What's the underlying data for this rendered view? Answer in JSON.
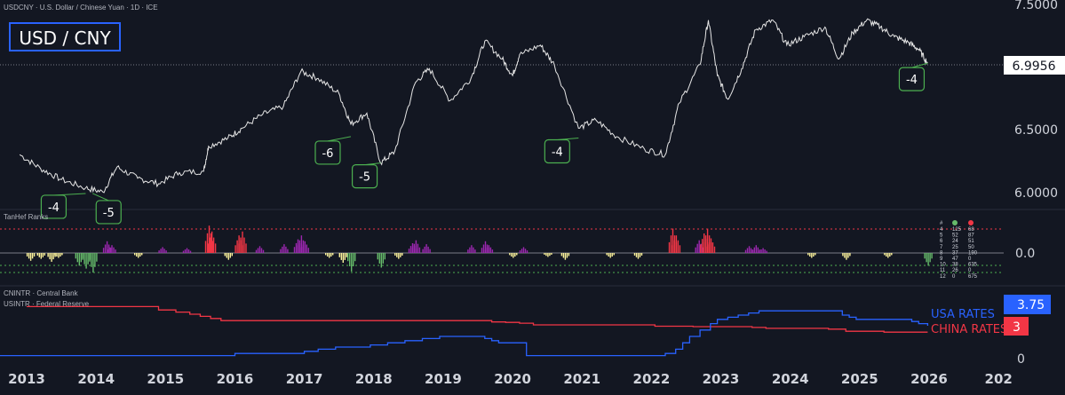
{
  "header": {
    "symbol_line": "USDCNY · U.S. Dollar / Chinese Yuan · 1D · ICE",
    "badge": "USD / CNY"
  },
  "price_pane": {
    "last_price": "6.9956",
    "y_ticks": [
      "7.5000",
      "6.5000",
      "6.0000"
    ],
    "ylim": [
      5.96,
      7.42
    ],
    "callouts": [
      {
        "label": "-4",
        "year": 2013.85,
        "price": 6.05
      },
      {
        "label": "-5",
        "year": 2013.95,
        "price": 6.05
      },
      {
        "label": "-6",
        "year": 2017.67,
        "price": 6.46
      },
      {
        "label": "-5",
        "year": 2018.1,
        "price": 6.27
      },
      {
        "label": "-4",
        "year": 2020.95,
        "price": 6.45
      },
      {
        "label": "-4",
        "year": 2025.98,
        "price": 6.99
      }
    ]
  },
  "ranks_pane": {
    "title": "TanHef Ranks",
    "zero_label": "0.0",
    "table_header": [
      "#",
      "●",
      "●"
    ],
    "table_rows": [
      [
        "4",
        "125",
        "68"
      ],
      [
        "5",
        "52",
        "87"
      ],
      [
        "6",
        "24",
        "51"
      ],
      [
        "7",
        "25",
        "50"
      ],
      [
        "8",
        "37",
        "190"
      ],
      [
        "9",
        "47",
        "0"
      ],
      [
        "10",
        "38",
        "635"
      ],
      [
        "11",
        "26",
        "0"
      ],
      [
        "12",
        "0",
        "675"
      ]
    ]
  },
  "rates_pane": {
    "legend": [
      "CNINTR · Central Bank",
      "USINTR · Federal Reserve"
    ],
    "usa_label": "USA RATES",
    "china_label": "CHINA RATES",
    "usa_value": "3.75",
    "china_value": "3",
    "zero_tick": "0"
  },
  "x_axis": {
    "labels": [
      "2013",
      "2014",
      "2015",
      "2016",
      "2017",
      "2018",
      "2019",
      "2020",
      "2021",
      "2022",
      "2023",
      "2024",
      "2025",
      "2026",
      "202"
    ]
  },
  "colors": {
    "background": "#131722",
    "price_line": "#e6e6e6",
    "callout_green": "#4caf50",
    "badge_border": "#2962ff",
    "usa": "#2962ff",
    "china": "#f23645",
    "rank_purple": "#9c27b0",
    "rank_red": "#f23645",
    "rank_yellow": "#fff59d",
    "rank_green": "#66bb6a"
  },
  "chart_data": [
    {
      "type": "line",
      "title": "USDCNY · U.S. Dollar / Chinese Yuan · 1D · ICE",
      "series": [
        {
          "values": [
            [
              2012.9,
              6.33
            ],
            [
              2013.2,
              6.23
            ],
            [
              2013.5,
              6.15
            ],
            [
              2013.85,
              6.09
            ],
            [
              2014.1,
              6.06
            ],
            [
              2014.3,
              6.24
            ],
            [
              2014.6,
              6.16
            ],
            [
              2014.9,
              6.12
            ],
            [
              2015.2,
              6.2
            ],
            [
              2015.55,
              6.21
            ],
            [
              2015.62,
              6.39
            ],
            [
              2015.9,
              6.45
            ],
            [
              2016.1,
              6.52
            ],
            [
              2016.4,
              6.62
            ],
            [
              2016.7,
              6.68
            ],
            [
              2016.95,
              6.93
            ],
            [
              2017.2,
              6.88
            ],
            [
              2017.5,
              6.77
            ],
            [
              2017.67,
              6.55
            ],
            [
              2017.9,
              6.63
            ],
            [
              2018.1,
              6.27
            ],
            [
              2018.3,
              6.35
            ],
            [
              2018.6,
              6.85
            ],
            [
              2018.8,
              6.95
            ],
            [
              2019.1,
              6.72
            ],
            [
              2019.4,
              6.88
            ],
            [
              2019.6,
              7.15
            ],
            [
              2019.85,
              7.02
            ],
            [
              2020.0,
              6.9
            ],
            [
              2020.1,
              7.05
            ],
            [
              2020.4,
              7.12
            ],
            [
              2020.6,
              6.98
            ],
            [
              2020.95,
              6.52
            ],
            [
              2021.2,
              6.58
            ],
            [
              2021.5,
              6.46
            ],
            [
              2021.9,
              6.37
            ],
            [
              2022.2,
              6.33
            ],
            [
              2022.4,
              6.7
            ],
            [
              2022.7,
              6.98
            ],
            [
              2022.82,
              7.3
            ],
            [
              2022.95,
              6.9
            ],
            [
              2023.1,
              6.73
            ],
            [
              2023.3,
              6.95
            ],
            [
              2023.5,
              7.23
            ],
            [
              2023.75,
              7.3
            ],
            [
              2023.95,
              7.12
            ],
            [
              2024.2,
              7.18
            ],
            [
              2024.5,
              7.25
            ],
            [
              2024.7,
              7.02
            ],
            [
              2024.9,
              7.21
            ],
            [
              2025.1,
              7.3
            ],
            [
              2025.3,
              7.25
            ],
            [
              2025.5,
              7.18
            ],
            [
              2025.7,
              7.14
            ],
            [
              2025.85,
              7.09
            ],
            [
              2025.98,
              6.99
            ]
          ]
        }
      ],
      "ylim": [
        5.96,
        7.42
      ],
      "y_ticks": [
        6.0,
        6.5,
        7.5
      ],
      "last_value": 6.9956
    },
    {
      "type": "bar",
      "title": "TanHef Ranks",
      "ylim": [
        -0.35,
        0.4
      ],
      "series": [
        {
          "values": [
            {
              "year": 2013.05,
              "value": -0.08,
              "color": "yellow"
            },
            {
              "year": 2013.2,
              "value": -0.06,
              "color": "yellow"
            },
            {
              "year": 2013.35,
              "value": -0.09,
              "color": "yellow"
            },
            {
              "year": 2013.45,
              "value": -0.05,
              "color": "yellow"
            },
            {
              "year": 2013.75,
              "value": -0.13,
              "color": "green"
            },
            {
              "year": 2013.85,
              "value": -0.16,
              "color": "green"
            },
            {
              "year": 2013.95,
              "value": -0.2,
              "color": "green"
            },
            {
              "year": 2014.15,
              "value": 0.12,
              "color": "purple"
            },
            {
              "year": 2014.22,
              "value": 0.08,
              "color": "purple"
            },
            {
              "year": 2014.6,
              "value": -0.05,
              "color": "yellow"
            },
            {
              "year": 2014.95,
              "value": 0.06,
              "color": "purple"
            },
            {
              "year": 2015.3,
              "value": 0.05,
              "color": "purple"
            },
            {
              "year": 2015.62,
              "value": 0.28,
              "color": "red"
            },
            {
              "year": 2015.66,
              "value": 0.22,
              "color": "red"
            },
            {
              "year": 2015.9,
              "value": -0.07,
              "color": "yellow"
            },
            {
              "year": 2016.05,
              "value": 0.18,
              "color": "red"
            },
            {
              "year": 2016.1,
              "value": 0.22,
              "color": "red"
            },
            {
              "year": 2016.35,
              "value": 0.07,
              "color": "purple"
            },
            {
              "year": 2016.7,
              "value": 0.09,
              "color": "purple"
            },
            {
              "year": 2016.9,
              "value": 0.14,
              "color": "purple"
            },
            {
              "year": 2016.95,
              "value": 0.18,
              "color": "purple"
            },
            {
              "year": 2017.0,
              "value": 0.12,
              "color": "purple"
            },
            {
              "year": 2017.35,
              "value": -0.05,
              "color": "yellow"
            },
            {
              "year": 2017.55,
              "value": -0.1,
              "color": "yellow"
            },
            {
              "year": 2017.67,
              "value": -0.19,
              "color": "green"
            },
            {
              "year": 2018.1,
              "value": -0.15,
              "color": "green"
            },
            {
              "year": 2018.35,
              "value": -0.06,
              "color": "yellow"
            },
            {
              "year": 2018.55,
              "value": 0.1,
              "color": "purple"
            },
            {
              "year": 2018.6,
              "value": 0.13,
              "color": "purple"
            },
            {
              "year": 2018.75,
              "value": 0.09,
              "color": "purple"
            },
            {
              "year": 2019.4,
              "value": 0.08,
              "color": "purple"
            },
            {
              "year": 2019.6,
              "value": 0.12,
              "color": "purple"
            },
            {
              "year": 2019.65,
              "value": 0.08,
              "color": "purple"
            },
            {
              "year": 2020.0,
              "value": -0.05,
              "color": "yellow"
            },
            {
              "year": 2020.15,
              "value": 0.06,
              "color": "purple"
            },
            {
              "year": 2020.5,
              "value": -0.04,
              "color": "yellow"
            },
            {
              "year": 2020.75,
              "value": -0.07,
              "color": "yellow"
            },
            {
              "year": 2021.4,
              "value": -0.05,
              "color": "yellow"
            },
            {
              "year": 2021.8,
              "value": -0.06,
              "color": "yellow"
            },
            {
              "year": 2022.3,
              "value": 0.25,
              "color": "red"
            },
            {
              "year": 2022.35,
              "value": 0.18,
              "color": "red"
            },
            {
              "year": 2022.68,
              "value": 0.13,
              "color": "purple"
            },
            {
              "year": 2022.75,
              "value": 0.2,
              "color": "red"
            },
            {
              "year": 2022.8,
              "value": 0.25,
              "color": "red"
            },
            {
              "year": 2022.85,
              "value": 0.15,
              "color": "red"
            },
            {
              "year": 2023.4,
              "value": 0.07,
              "color": "purple"
            },
            {
              "year": 2023.5,
              "value": 0.08,
              "color": "purple"
            },
            {
              "year": 2023.6,
              "value": 0.05,
              "color": "purple"
            },
            {
              "year": 2024.3,
              "value": -0.05,
              "color": "yellow"
            },
            {
              "year": 2024.8,
              "value": -0.07,
              "color": "yellow"
            },
            {
              "year": 2025.4,
              "value": -0.05,
              "color": "yellow"
            },
            {
              "year": 2025.98,
              "value": -0.13,
              "color": "green"
            }
          ]
        }
      ]
    },
    {
      "type": "line",
      "ylim": [
        0,
        7.5
      ],
      "series": [
        {
          "name": "USA RATES",
          "values": [
            [
              2012.0,
              0.25
            ],
            [
              2015.9,
              0.25
            ],
            [
              2016.0,
              0.5
            ],
            [
              2016.9,
              0.5
            ],
            [
              2017.0,
              0.75
            ],
            [
              2017.2,
              1.0
            ],
            [
              2017.45,
              1.25
            ],
            [
              2017.95,
              1.5
            ],
            [
              2018.2,
              1.75
            ],
            [
              2018.45,
              2.0
            ],
            [
              2018.7,
              2.25
            ],
            [
              2018.95,
              2.5
            ],
            [
              2019.55,
              2.5
            ],
            [
              2019.6,
              2.25
            ],
            [
              2019.7,
              2.0
            ],
            [
              2019.8,
              1.75
            ],
            [
              2020.15,
              1.75
            ],
            [
              2020.2,
              0.25
            ],
            [
              2022.15,
              0.25
            ],
            [
              2022.2,
              0.5
            ],
            [
              2022.35,
              1.0
            ],
            [
              2022.45,
              1.75
            ],
            [
              2022.55,
              2.5
            ],
            [
              2022.7,
              3.25
            ],
            [
              2022.85,
              4.0
            ],
            [
              2022.95,
              4.5
            ],
            [
              2023.1,
              4.75
            ],
            [
              2023.25,
              5.0
            ],
            [
              2023.4,
              5.25
            ],
            [
              2023.55,
              5.5
            ],
            [
              2024.7,
              5.5
            ],
            [
              2024.75,
              5.0
            ],
            [
              2024.85,
              4.75
            ],
            [
              2024.95,
              4.5
            ],
            [
              2025.7,
              4.5
            ],
            [
              2025.75,
              4.25
            ],
            [
              2025.85,
              4.0
            ],
            [
              2025.98,
              3.75
            ]
          ]
        },
        {
          "name": "CHINA RATES",
          "values": [
            [
              2013.0,
              6.0
            ],
            [
              2014.85,
              6.0
            ],
            [
              2014.9,
              5.6
            ],
            [
              2015.15,
              5.35
            ],
            [
              2015.35,
              5.1
            ],
            [
              2015.5,
              4.85
            ],
            [
              2015.65,
              4.6
            ],
            [
              2015.8,
              4.35
            ],
            [
              2019.6,
              4.35
            ],
            [
              2019.7,
              4.2
            ],
            [
              2019.9,
              4.15
            ],
            [
              2020.1,
              4.05
            ],
            [
              2020.3,
              3.85
            ],
            [
              2021.95,
              3.85
            ],
            [
              2022.05,
              3.7
            ],
            [
              2022.6,
              3.65
            ],
            [
              2023.45,
              3.55
            ],
            [
              2023.65,
              3.45
            ],
            [
              2024.55,
              3.35
            ],
            [
              2024.8,
              3.1
            ],
            [
              2025.35,
              3.0
            ],
            [
              2025.98,
              3.0
            ]
          ]
        }
      ],
      "last_values": {
        "USA RATES": 3.75,
        "CHINA RATES": 3
      }
    }
  ]
}
